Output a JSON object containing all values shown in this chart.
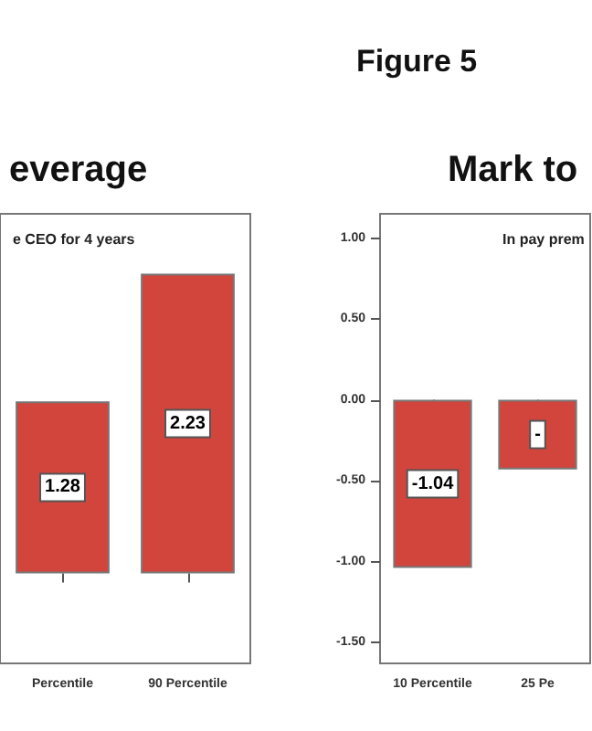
{
  "chart_data": [
    {
      "type": "bar",
      "title": "everage",
      "subtitle": "e CEO for 4 years",
      "categories": [
        "Percentile",
        "90 Percentile"
      ],
      "values": [
        1.28,
        2.23
      ],
      "color": "#d1453d",
      "data_labels": true
    },
    {
      "type": "bar",
      "title": "Mark to",
      "subtitle": "In pay prem",
      "annotations": [
        "Figure 5"
      ],
      "categories": [
        "10 Percentile",
        "25 Pe"
      ],
      "values": [
        -1.04,
        -0.43
      ],
      "value_labels": [
        "-1.04",
        "-"
      ],
      "color": "#d1453d",
      "ylim": [
        -1.63,
        1.15
      ],
      "yticks": [
        {
          "value": -1.5,
          "label": "-1.50"
        },
        {
          "value": -1,
          "label": "-1.00"
        },
        {
          "value": -0.5,
          "label": "-0.50"
        },
        {
          "value": 0,
          "label": "0.00"
        },
        {
          "value": 0.5,
          "label": "0.50"
        },
        {
          "value": 1,
          "label": "1.00"
        }
      ]
    }
  ]
}
